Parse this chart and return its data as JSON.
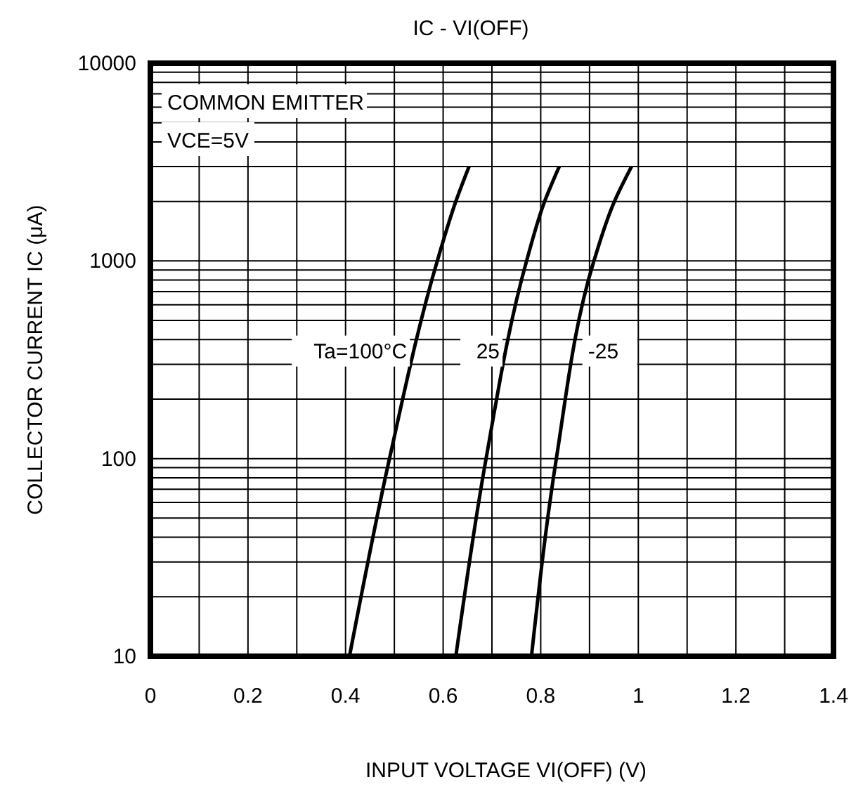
{
  "chart_data": {
    "type": "line",
    "title": "IC - VI(OFF)",
    "xlabel": "INPUT VOLTAGE  VI(OFF)   (V)",
    "ylabel": "COLLECTOR CURRENT  IC   (μA)",
    "annotations": [
      "COMMON EMITTER",
      "VCE=5V"
    ],
    "series": [
      {
        "name": "Ta=100°C",
        "color": "#000000",
        "x": [
          0.408,
          0.49,
          0.588,
          0.626,
          0.653
        ],
        "values": [
          10,
          100,
          1000,
          2000,
          3000
        ]
      },
      {
        "name": "25",
        "color": "#000000",
        "x": [
          0.626,
          0.688,
          0.771,
          0.808,
          0.838
        ],
        "values": [
          10,
          100,
          1000,
          2000,
          3000
        ]
      },
      {
        "name": "-25",
        "color": "#000000",
        "x": [
          0.781,
          0.832,
          0.909,
          0.951,
          0.986
        ],
        "values": [
          10,
          100,
          1000,
          2000,
          3000
        ]
      }
    ],
    "xlim": [
      0,
      1.4
    ],
    "xticks": [
      0,
      0.2,
      0.4,
      0.6,
      0.8,
      1,
      1.2,
      1.4
    ],
    "ylim": [
      10,
      10000
    ],
    "yticks": [
      10,
      100,
      1000,
      10000
    ],
    "log": "y",
    "grid": true,
    "legend": false,
    "marker": "none",
    "line_style": "solid"
  }
}
